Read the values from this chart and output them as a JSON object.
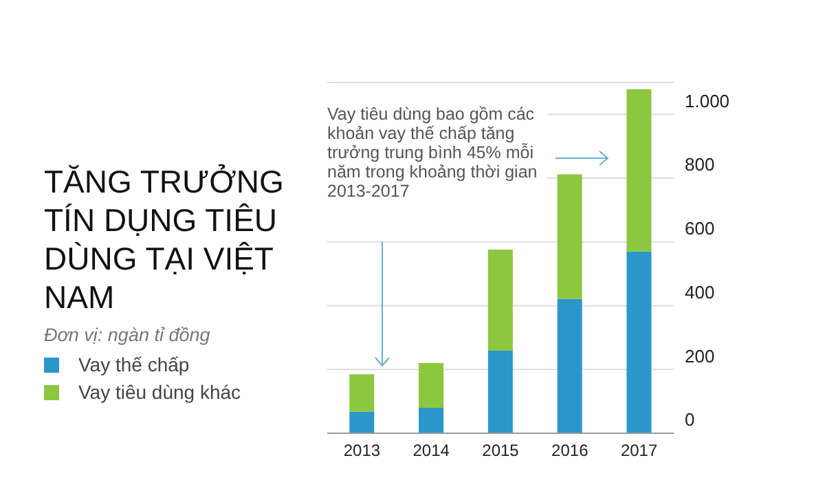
{
  "chart_data": {
    "type": "bar",
    "title": "TĂNG TRƯỞNG TÍN DỤNG TIÊU DÙNG TẠI VIỆT NAM",
    "subtitle": "Đơn vị: ngàn tỉ đồng",
    "annotations": [
      "Vay tiêu dùng bao gồm các khoản vay thế chấp tăng trưởng trung bình 45% mỗi năm trong khoảng thời gian 2013-2017"
    ],
    "categories": [
      "2013",
      "2014",
      "2015",
      "2016",
      "2017"
    ],
    "series": [
      {
        "name": "Vay thế chấp",
        "color": "#2b96c9",
        "values": [
          68,
          80,
          259,
          421,
          570
        ]
      },
      {
        "name": "Vay tiêu dùng khác",
        "color": "#8dc63f",
        "values": [
          117,
          140,
          317,
          391,
          509
        ]
      }
    ],
    "stacked": true,
    "ylim": [
      0,
      1100
    ],
    "yticks": [
      0,
      200,
      400,
      600,
      800,
      {
        "value": 1000,
        "label": "1.000"
      }
    ],
    "grid": "y",
    "legend": "left"
  }
}
